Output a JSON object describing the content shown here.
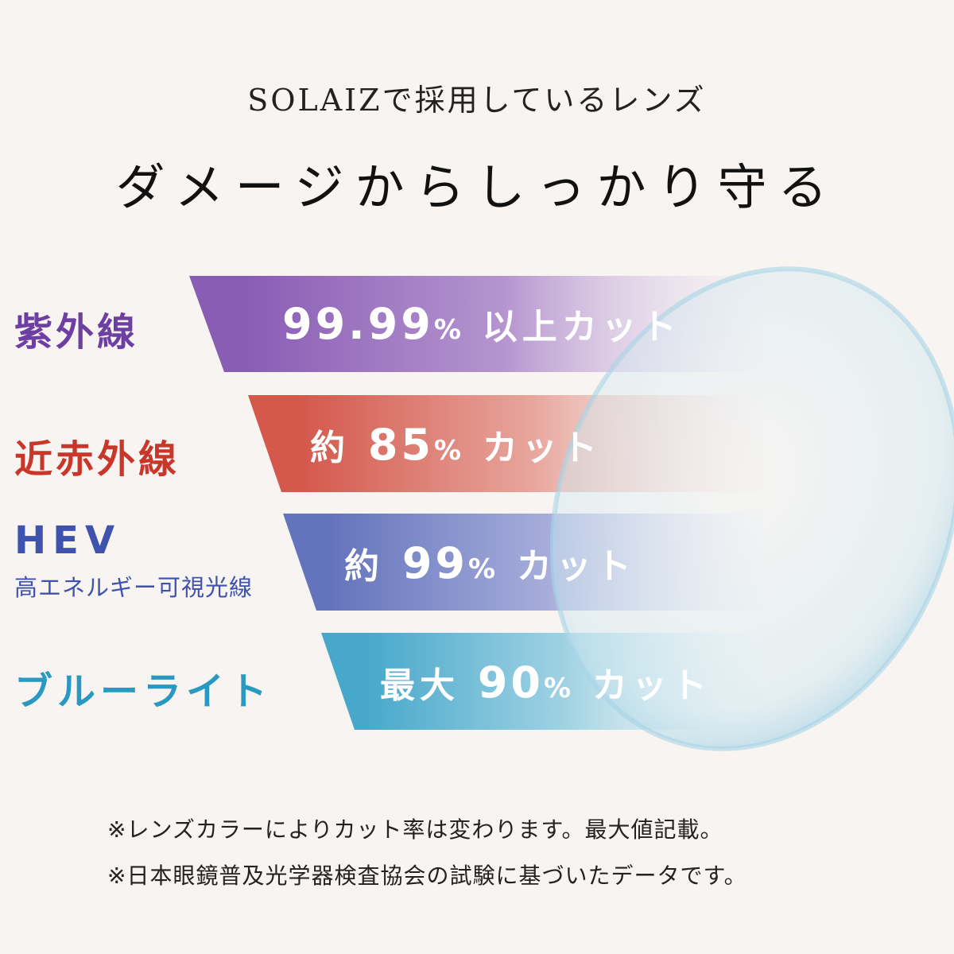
{
  "header": {
    "subtitle": "SOLAIZで採用しているレンズ",
    "title": "ダメージからしっかり守る"
  },
  "rows": [
    {
      "label": "紫外線",
      "sublabel": "",
      "prefix": "",
      "number": "99.99",
      "percent": "%",
      "suffix": "以上カット",
      "color": "#8a5db5",
      "label_color": "#6e3fa3"
    },
    {
      "label": "近赤外線",
      "sublabel": "",
      "prefix": "約",
      "number": "85",
      "percent": "%",
      "suffix": "カット",
      "color": "#d4584c",
      "label_color": "#c9372b"
    },
    {
      "label": "HEV",
      "sublabel": "高エネルギー可視光線",
      "prefix": "約",
      "number": "99",
      "percent": "%",
      "suffix": "カット",
      "color": "#6474bc",
      "label_color": "#3e52ae"
    },
    {
      "label": "ブルーライト",
      "sublabel": "",
      "prefix": "最大",
      "number": "90",
      "percent": "%",
      "suffix": "カット",
      "color": "#48a8cb",
      "label_color": "#2999c2"
    }
  ],
  "notes": [
    "※レンズカラーによりカット率は変わります。最大値記載。",
    "※日本眼鏡普及光学器検査協会の試験に基づいたデータです。"
  ],
  "lens_color": "#a9d4e6"
}
